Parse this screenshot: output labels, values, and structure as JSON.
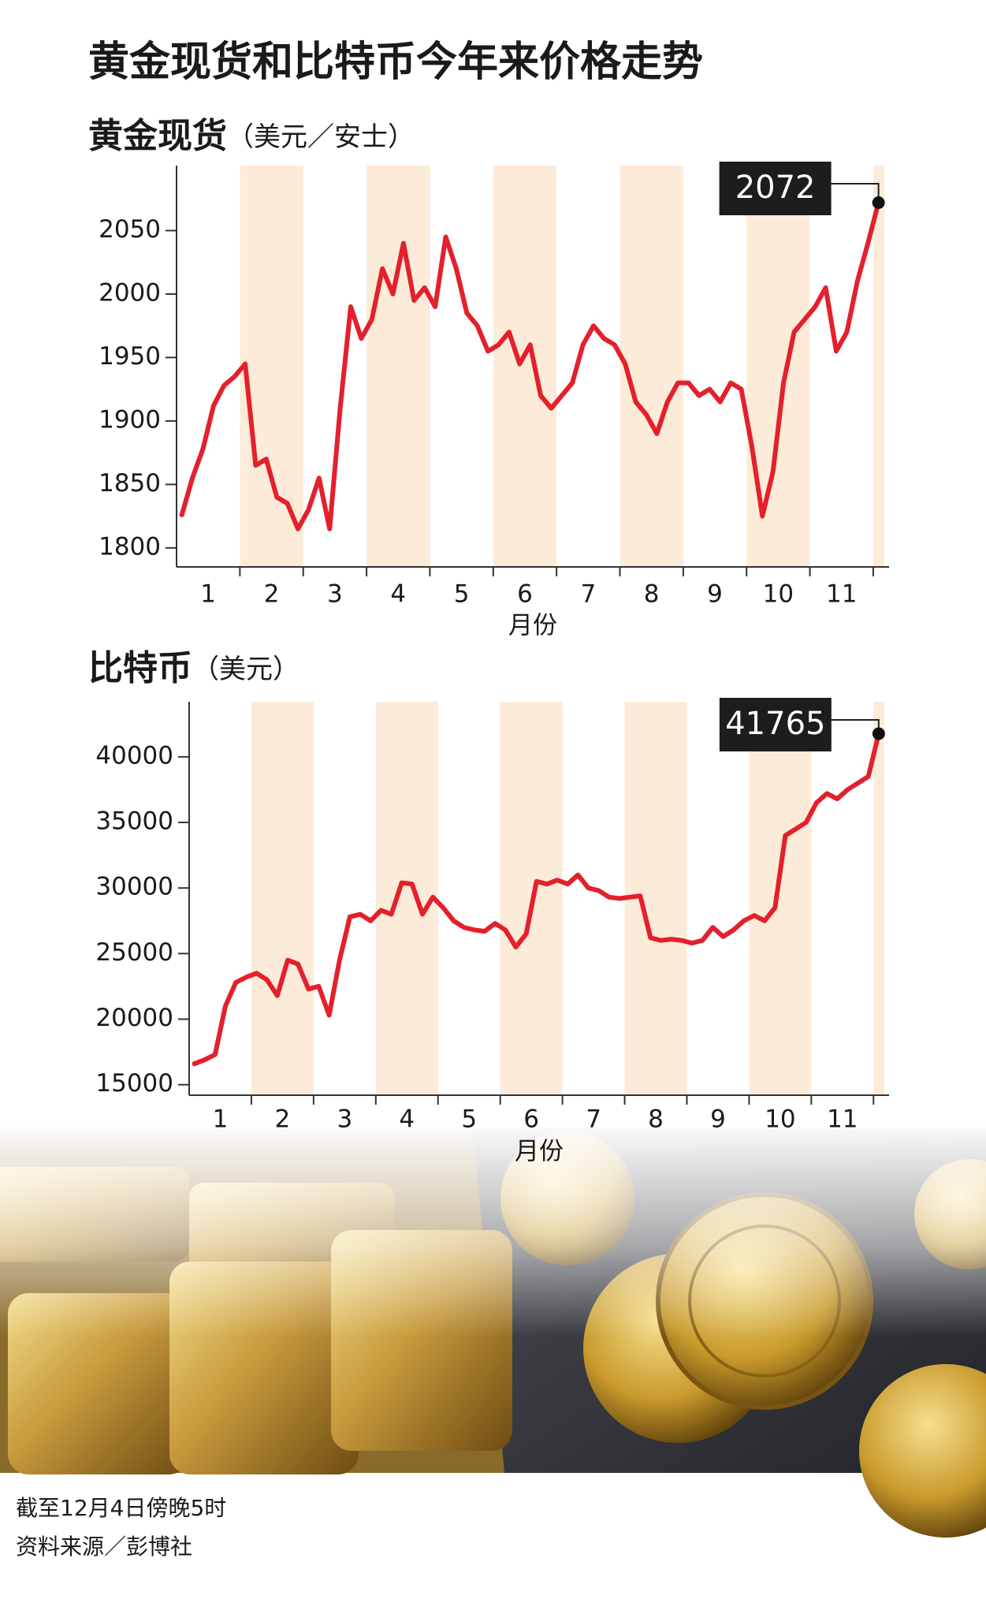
{
  "title": "黄金现货和比特币今年来价格走势",
  "chart_data": [
    {
      "type": "line",
      "title": "黄金现货",
      "subtitle": "（美元／安士）",
      "x_label": "月份",
      "categories": [
        null,
        null,
        "1",
        null,
        null,
        null,
        null,
        null,
        "2",
        null,
        null,
        null,
        null,
        null,
        "3",
        null,
        null,
        null,
        null,
        null,
        "4",
        null,
        null,
        null,
        null,
        null,
        "5",
        null,
        null,
        null,
        null,
        null,
        "6",
        null,
        null,
        null,
        null,
        null,
        "7",
        null,
        null,
        null,
        null,
        null,
        "8",
        null,
        null,
        null,
        null,
        null,
        "9",
        null,
        null,
        null,
        null,
        null,
        "10",
        null,
        null,
        null,
        null,
        null,
        "11",
        null,
        null,
        null,
        null
      ],
      "values": [
        1826,
        1855,
        1878,
        1912,
        1928,
        1935,
        1945,
        1865,
        1870,
        1840,
        1835,
        1815,
        1830,
        1855,
        1815,
        1910,
        1990,
        1965,
        1980,
        2020,
        2000,
        2040,
        1995,
        2005,
        1990,
        2045,
        2020,
        1985,
        1975,
        1955,
        1960,
        1970,
        1945,
        1960,
        1920,
        1910,
        1920,
        1930,
        1960,
        1975,
        1965,
        1960,
        1945,
        1915,
        1905,
        1890,
        1915,
        1930,
        1930,
        1920,
        1925,
        1915,
        1930,
        1925,
        1880,
        1825,
        1860,
        1930,
        1970,
        1980,
        1990,
        2005,
        1955,
        1970,
        2010,
        2040,
        2072
      ],
      "color": "#e3202c",
      "ylim": [
        1785,
        2095
      ],
      "yticks": [
        1800,
        1850,
        1900,
        1950,
        2000,
        2050
      ]
    },
    {
      "type": "line",
      "title": "比特币",
      "subtitle": "（美元）",
      "x_label": "月份",
      "categories": [
        null,
        null,
        "1",
        null,
        null,
        null,
        null,
        null,
        "2",
        null,
        null,
        null,
        null,
        null,
        "3",
        null,
        null,
        null,
        null,
        null,
        "4",
        null,
        null,
        null,
        null,
        null,
        "5",
        null,
        null,
        null,
        null,
        null,
        "6",
        null,
        null,
        null,
        null,
        null,
        "7",
        null,
        null,
        null,
        null,
        null,
        "8",
        null,
        null,
        null,
        null,
        null,
        "9",
        null,
        null,
        null,
        null,
        null,
        "10",
        null,
        null,
        null,
        null,
        null,
        "11",
        null,
        null,
        null,
        null
      ],
      "values": [
        16600,
        16900,
        17300,
        21000,
        22800,
        23200,
        23500,
        23000,
        21800,
        24500,
        24200,
        22300,
        22500,
        20300,
        24500,
        27800,
        28000,
        27500,
        28300,
        28000,
        30400,
        30300,
        28000,
        29300,
        28500,
        27500,
        27000,
        26800,
        26700,
        27300,
        26800,
        25500,
        26500,
        30500,
        30300,
        30600,
        30300,
        31000,
        30000,
        29800,
        29300,
        29200,
        29300,
        29400,
        26200,
        26000,
        26100,
        26000,
        25800,
        26000,
        27000,
        26300,
        26800,
        27500,
        27900,
        27500,
        28500,
        34000,
        34500,
        35000,
        36500,
        37200,
        36800,
        37500,
        38000,
        38500,
        41765
      ],
      "color": "#e3202c",
      "ylim": [
        14200,
        43600
      ],
      "yticks": [
        15000,
        20000,
        25000,
        30000,
        35000,
        40000
      ]
    }
  ],
  "notes": [
    "截至12月4日傍晚5时",
    "资料来源／彭博社"
  ]
}
